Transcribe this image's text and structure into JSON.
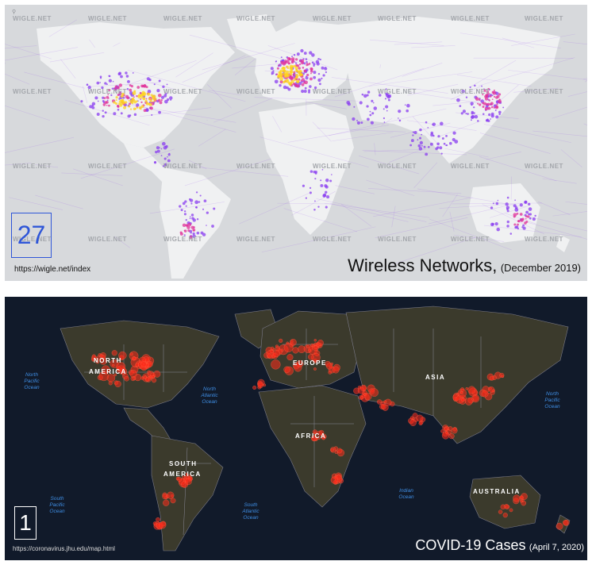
{
  "wireless_map": {
    "number": "27",
    "url": "https://wigle.net/index",
    "caption_main": "Wireless Networks,",
    "caption_date": "(December 2019)",
    "watermark": "WIGLE.NET",
    "colors": {
      "land": "#f0f1f2",
      "ocean": "#d7d9dc",
      "sparse": "#8a3cf0",
      "mid": "#e0309a",
      "dense": "#ffd21a"
    }
  },
  "covid_map": {
    "number": "1",
    "url": "https://coronavirus.jhu.edu/map.html",
    "caption_main": "COVID-19 Cases",
    "caption_date": "(April 7, 2020)",
    "continent_labels": {
      "north_america_1": "NORTH",
      "north_america_2": "AMERICA",
      "europe": "EUROPE",
      "asia": "ASIA",
      "africa": "AFRICA",
      "south_america_1": "SOUTH",
      "south_america_2": "AMERICA",
      "australia": "AUSTRALIA"
    },
    "ocean_labels": {
      "north_pacific_left": [
        "North",
        "Pacific",
        "Ocean"
      ],
      "north_atlantic": [
        "North",
        "Atlantic",
        "Ocean"
      ],
      "north_pacific_right": [
        "North",
        "Pacific",
        "Ocean"
      ],
      "south_pacific": [
        "South",
        "Pacific",
        "Ocean"
      ],
      "south_atlantic": [
        "South",
        "Atlantic",
        "Ocean"
      ],
      "indian": [
        "Indian",
        "Ocean"
      ]
    },
    "colors": {
      "land": "#3b3a2c",
      "ocean": "#111a2a",
      "bubble": "#ff2a1a",
      "border": "#7a7a88"
    }
  }
}
